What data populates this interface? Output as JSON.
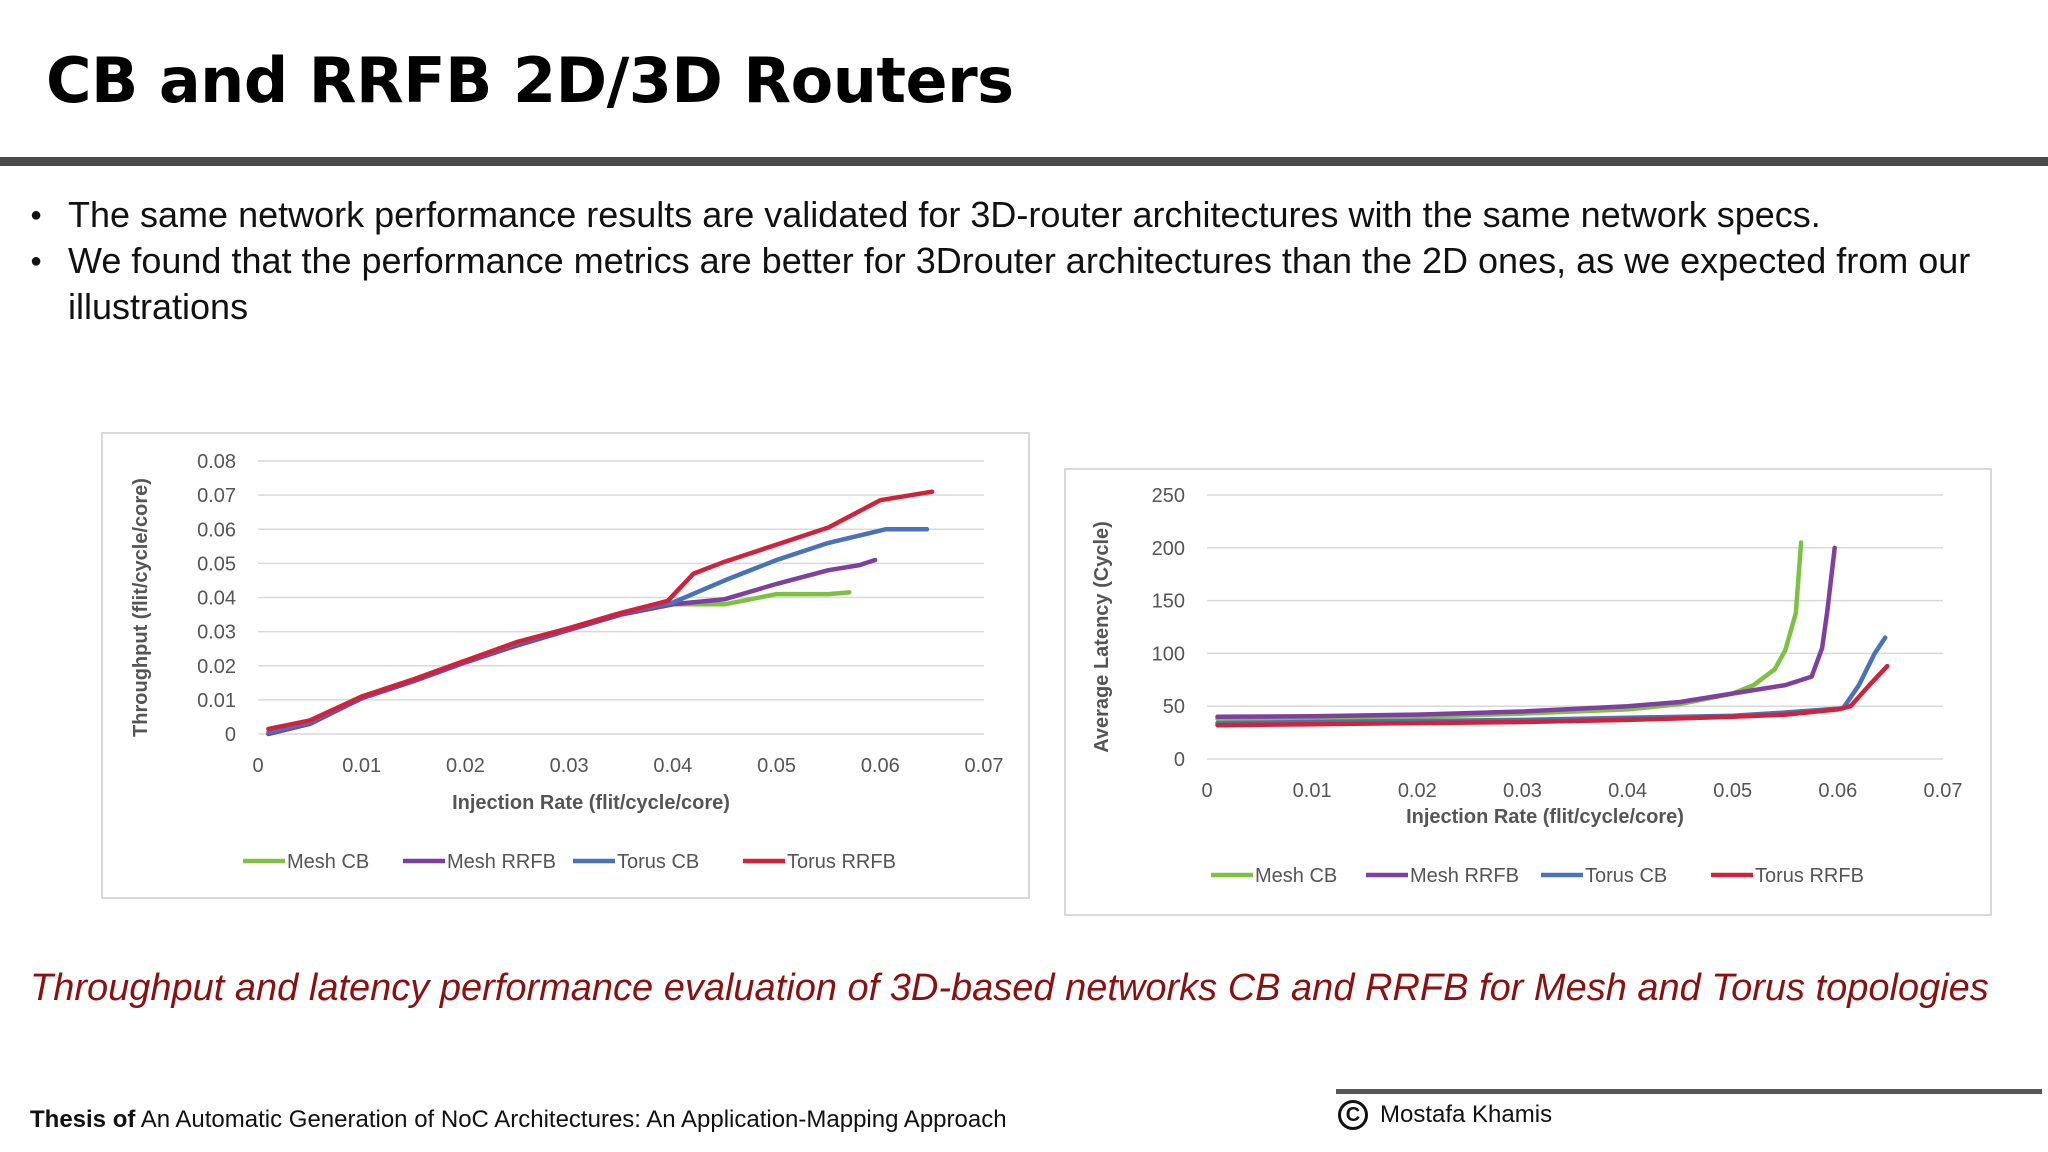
{
  "slide": {
    "title": "CB and RRFB 2D/3D Routers",
    "bullets": [
      "The same network performance results are validated for 3D-router architectures with the same network specs.",
      "We found that the performance metrics are better for 3Drouter architectures than the 2D ones, as we expected from our illustrations"
    ],
    "caption": "Throughput and latency performance evaluation of 3D-based networks CB and RRFB for Mesh and Torus topologies",
    "footer": {
      "thesis_label": "Thesis of",
      "thesis_title": "An Automatic Generation of NoC Architectures: An Application-Mapping Approach",
      "author": "Mostafa Khamis",
      "copyright_icon": "copyright-icon"
    }
  },
  "chart_data": [
    {
      "type": "line",
      "title": "",
      "xlabel": "Injection Rate (flit/cycle/core)",
      "ylabel": "Throughput (flit/cycle/core)",
      "xlim": [
        0,
        0.07
      ],
      "ylim": [
        0,
        0.08
      ],
      "xticks": [
        "0",
        "0.01",
        "0.02",
        "0.03",
        "0.04",
        "0.05",
        "0.06",
        "0.07"
      ],
      "yticks": [
        "0",
        "0.01",
        "0.02",
        "0.03",
        "0.04",
        "0.05",
        "0.06",
        "0.07",
        "0.08"
      ],
      "grid": true,
      "legend_position": "bottom",
      "series": [
        {
          "name": "Mesh CB",
          "color": "#7dc142",
          "points": [
            [
              0.001,
              0
            ],
            [
              0.005,
              0.003
            ],
            [
              0.01,
              0.0105
            ],
            [
              0.015,
              0.0155
            ],
            [
              0.02,
              0.021
            ],
            [
              0.025,
              0.026
            ],
            [
              0.03,
              0.0305
            ],
            [
              0.035,
              0.035
            ],
            [
              0.04,
              0.038
            ],
            [
              0.045,
              0.038
            ],
            [
              0.05,
              0.041
            ],
            [
              0.055,
              0.041
            ],
            [
              0.057,
              0.0415
            ]
          ]
        },
        {
          "name": "Mesh RRFB",
          "color": "#7f3fa0",
          "points": [
            [
              0.001,
              0
            ],
            [
              0.005,
              0.003
            ],
            [
              0.01,
              0.0105
            ],
            [
              0.015,
              0.0155
            ],
            [
              0.02,
              0.021
            ],
            [
              0.025,
              0.026
            ],
            [
              0.03,
              0.0305
            ],
            [
              0.035,
              0.035
            ],
            [
              0.04,
              0.038
            ],
            [
              0.045,
              0.0395
            ],
            [
              0.05,
              0.044
            ],
            [
              0.055,
              0.048
            ],
            [
              0.058,
              0.0495
            ],
            [
              0.0595,
              0.051
            ]
          ]
        },
        {
          "name": "Torus CB",
          "color": "#4a72b8",
          "points": [
            [
              0.001,
              0.0005
            ],
            [
              0.005,
              0.0035
            ],
            [
              0.01,
              0.011
            ],
            [
              0.015,
              0.016
            ],
            [
              0.02,
              0.0215
            ],
            [
              0.025,
              0.0265
            ],
            [
              0.03,
              0.031
            ],
            [
              0.035,
              0.0355
            ],
            [
              0.04,
              0.0385
            ],
            [
              0.045,
              0.045
            ],
            [
              0.05,
              0.051
            ],
            [
              0.055,
              0.056
            ],
            [
              0.0605,
              0.06
            ],
            [
              0.0645,
              0.06
            ]
          ]
        },
        {
          "name": "Torus RRFB",
          "color": "#d0223a",
          "points": [
            [
              0.001,
              0.0015
            ],
            [
              0.005,
              0.004
            ],
            [
              0.01,
              0.011
            ],
            [
              0.015,
              0.016
            ],
            [
              0.02,
              0.0215
            ],
            [
              0.025,
              0.027
            ],
            [
              0.03,
              0.031
            ],
            [
              0.035,
              0.0355
            ],
            [
              0.0395,
              0.039
            ],
            [
              0.042,
              0.047
            ],
            [
              0.045,
              0.0505
            ],
            [
              0.05,
              0.0555
            ],
            [
              0.055,
              0.0605
            ],
            [
              0.06,
              0.0685
            ],
            [
              0.065,
              0.071
            ]
          ]
        }
      ]
    },
    {
      "type": "line",
      "title": "",
      "xlabel": "Injection Rate (flit/cycle/core)",
      "ylabel": "Average Latency (Cycle)",
      "xlim": [
        0,
        0.07
      ],
      "ylim": [
        0,
        250
      ],
      "xticks": [
        "0",
        "0.01",
        "0.02",
        "0.03",
        "0.04",
        "0.05",
        "0.06",
        "0.07"
      ],
      "yticks": [
        "0",
        "50",
        "100",
        "150",
        "200",
        "250"
      ],
      "grid": true,
      "legend_position": "bottom",
      "series": [
        {
          "name": "Mesh CB",
          "color": "#7dc142",
          "points": [
            [
              0.001,
              38
            ],
            [
              0.01,
              38.5
            ],
            [
              0.02,
              40
            ],
            [
              0.03,
              43
            ],
            [
              0.04,
              47
            ],
            [
              0.045,
              52
            ],
            [
              0.05,
              62
            ],
            [
              0.052,
              70
            ],
            [
              0.054,
              85
            ],
            [
              0.055,
              103
            ],
            [
              0.056,
              138
            ],
            [
              0.0565,
              205
            ]
          ]
        },
        {
          "name": "Mesh RRFB",
          "color": "#7f3fa0",
          "points": [
            [
              0.001,
              40
            ],
            [
              0.01,
              40.5
            ],
            [
              0.02,
              42
            ],
            [
              0.03,
              45
            ],
            [
              0.04,
              50
            ],
            [
              0.045,
              54
            ],
            [
              0.05,
              62
            ],
            [
              0.055,
              70
            ],
            [
              0.0575,
              78
            ],
            [
              0.0585,
              105
            ],
            [
              0.059,
              140
            ],
            [
              0.0597,
              200
            ]
          ]
        },
        {
          "name": "Torus CB",
          "color": "#4a72b8",
          "points": [
            [
              0.001,
              34
            ],
            [
              0.01,
              35
            ],
            [
              0.02,
              36
            ],
            [
              0.03,
              37
            ],
            [
              0.04,
              39
            ],
            [
              0.05,
              41
            ],
            [
              0.055,
              44
            ],
            [
              0.0605,
              48
            ],
            [
              0.062,
              70
            ],
            [
              0.0635,
              100
            ],
            [
              0.0645,
              115
            ]
          ]
        },
        {
          "name": "Torus RRFB",
          "color": "#d0223a",
          "points": [
            [
              0.001,
              32
            ],
            [
              0.01,
              33
            ],
            [
              0.02,
              34
            ],
            [
              0.03,
              35
            ],
            [
              0.04,
              37
            ],
            [
              0.05,
              40
            ],
            [
              0.055,
              42
            ],
            [
              0.06,
              47
            ],
            [
              0.0612,
              50
            ],
            [
              0.063,
              70
            ],
            [
              0.0647,
              88
            ]
          ]
        }
      ]
    }
  ]
}
